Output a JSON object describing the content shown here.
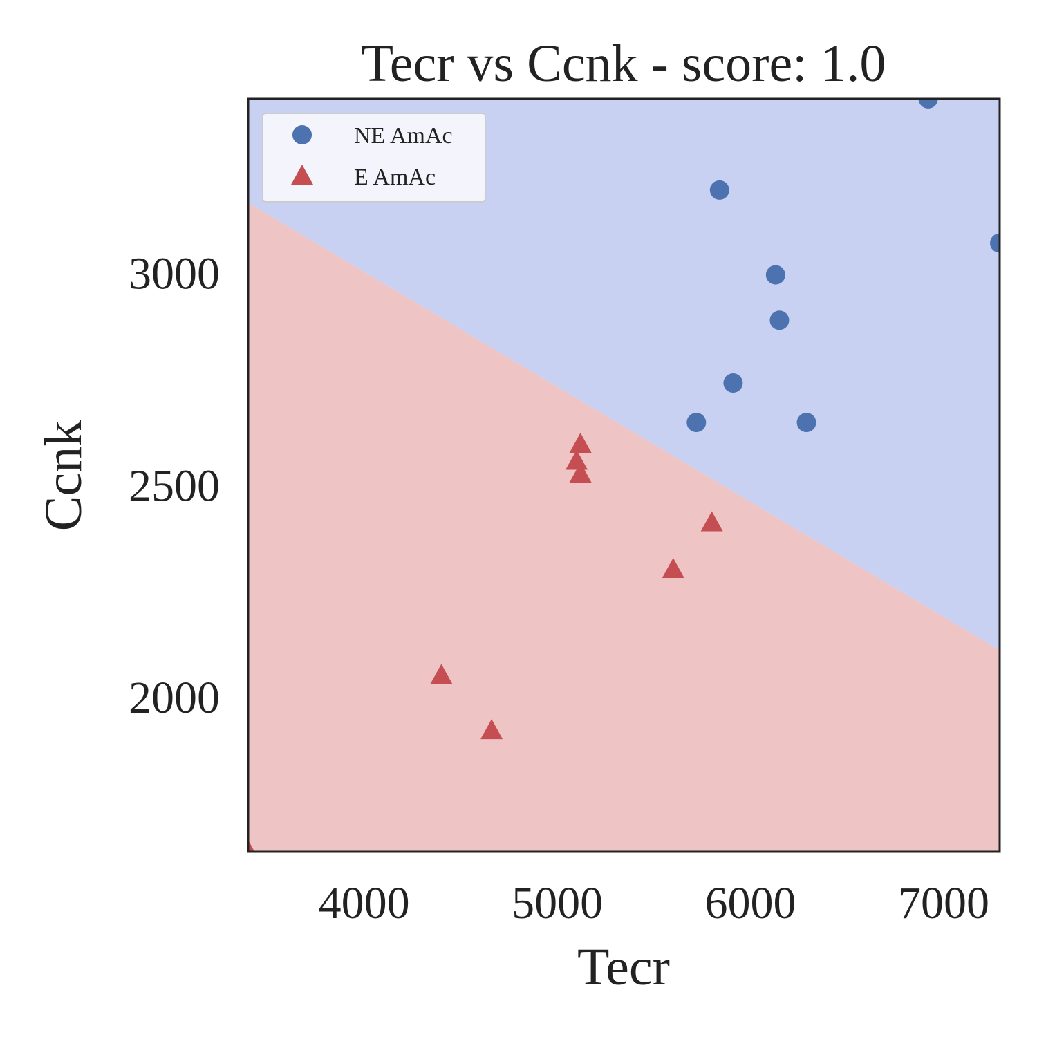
{
  "chart_data": {
    "type": "scatter",
    "title": "Tecr vs Ccnk - score: 1.0",
    "xlabel": "Tecr",
    "ylabel": "Ccnk",
    "xlim": [
      3400,
      7290
    ],
    "ylim": [
      1635,
      3410
    ],
    "xticks": [
      4000,
      5000,
      6000,
      7000
    ],
    "yticks": [
      2000,
      2500,
      3000
    ],
    "xtick_labels": [
      "4000",
      "5000",
      "6000",
      "7000"
    ],
    "ytick_labels": [
      "2000",
      "2500",
      "3000"
    ],
    "grid": false,
    "legend_position": "top-left",
    "decision_boundary": {
      "points": [
        [
          3400,
          3165
        ],
        [
          7290,
          2110
        ]
      ],
      "above_class": "NE AmAc",
      "below_class": "E AmAc",
      "above_color": "#c8d1f1",
      "below_color": "#eec4c4"
    },
    "series": [
      {
        "name": "NE AmAc",
        "marker": "circle",
        "color": "#4c72b0",
        "x": [
          6920,
          5840,
          7290,
          6130,
          6150,
          5910,
          5720,
          6290
        ],
        "y": [
          3410,
          3195,
          3070,
          2995,
          2888,
          2740,
          2647,
          2647
        ]
      },
      {
        "name": "E AmAc",
        "marker": "triangle",
        "color": "#c44e52",
        "x": [
          5120,
          5100,
          5120,
          5800,
          5600,
          4400,
          4660,
          3400
        ],
        "y": [
          2595,
          2555,
          2525,
          2410,
          2300,
          2050,
          1920,
          1635
        ]
      }
    ]
  }
}
